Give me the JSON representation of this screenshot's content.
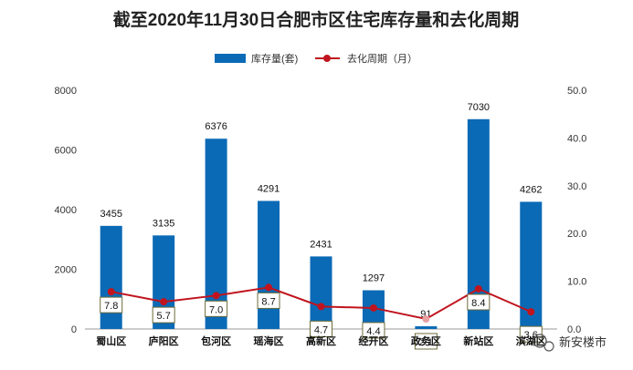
{
  "chart_data": {
    "type": "bar",
    "title": "截至2020年11月30日合肥市区住宅库存量和去化周期",
    "categories": [
      "蜀山区",
      "庐阳区",
      "包河区",
      "瑶海区",
      "高新区",
      "经开区",
      "政务区",
      "新站区",
      "滨湖区"
    ],
    "series": [
      {
        "name": "库存量(套)",
        "type": "bar",
        "axis": "left",
        "color": "#0b6ab6",
        "values": [
          3455,
          3135,
          6376,
          4291,
          2431,
          1297,
          91,
          7030,
          4262
        ]
      },
      {
        "name": "去化周期（月）",
        "type": "line",
        "axis": "right",
        "color": "#c0141e",
        "values": [
          7.8,
          5.7,
          7.0,
          8.7,
          4.7,
          4.4,
          2.1,
          8.4,
          3.6
        ]
      }
    ],
    "y_left": {
      "min": 0,
      "max": 8000,
      "ticks": [
        "0",
        "2000",
        "4000",
        "6000",
        "8000"
      ]
    },
    "y_right": {
      "min": 0,
      "max": 50,
      "ticks": [
        "0.0",
        "10.0",
        "20.0",
        "30.0",
        "40.0",
        "50.0"
      ]
    },
    "legend_position": "top-center",
    "grid": false
  },
  "watermark": "新安楼市"
}
